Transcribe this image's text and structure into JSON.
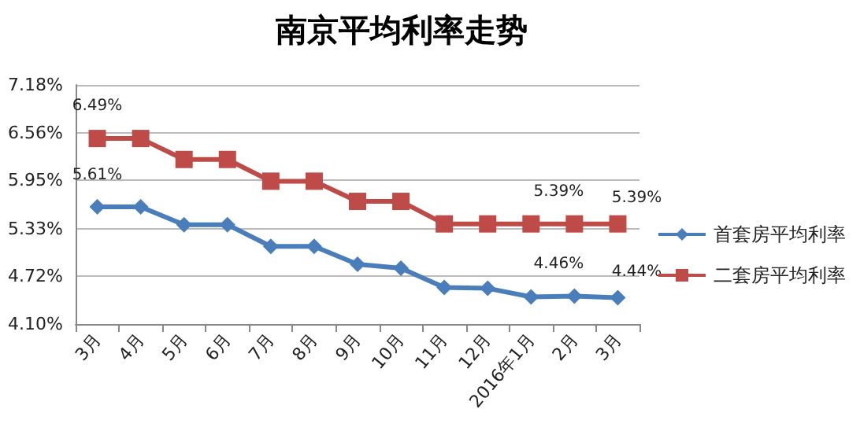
{
  "chart_data": {
    "type": "line",
    "title": "南京平均利率走势",
    "categories": [
      "3月",
      "4月",
      "5月",
      "6月",
      "7月",
      "8月",
      "9月",
      "10月",
      "11月",
      "12月",
      "2016年1月",
      "2月",
      "3月"
    ],
    "series": [
      {
        "name": "首套房平均利率",
        "color": "#4a7ebb",
        "marker": "diamond",
        "values": [
          5.61,
          5.61,
          5.38,
          5.38,
          5.1,
          5.1,
          4.87,
          4.82,
          4.57,
          4.56,
          4.45,
          4.46,
          4.44
        ],
        "value_labels": [
          "5.61%",
          null,
          null,
          null,
          null,
          null,
          null,
          null,
          null,
          null,
          null,
          "4.46%",
          "4.44%"
        ]
      },
      {
        "name": "二套房平均利率",
        "color": "#be4b48",
        "marker": "square",
        "values": [
          6.49,
          6.49,
          6.22,
          6.22,
          5.94,
          5.94,
          5.68,
          5.68,
          5.39,
          5.39,
          5.39,
          5.39,
          5.39
        ],
        "value_labels": [
          "6.49%",
          null,
          null,
          null,
          null,
          null,
          null,
          null,
          null,
          null,
          null,
          "5.39%",
          "5.39%"
        ]
      }
    ],
    "ylim": [
      4.1,
      7.18
    ],
    "yticks": [
      {
        "value": 4.1,
        "label": "4.10%"
      },
      {
        "value": 4.72,
        "label": "4.72%"
      },
      {
        "value": 5.33,
        "label": "5.33%"
      },
      {
        "value": 5.95,
        "label": "5.95%"
      },
      {
        "value": 6.56,
        "label": "6.56%"
      },
      {
        "value": 7.18,
        "label": "7.18%"
      }
    ],
    "grid": "y",
    "legend": "right"
  }
}
